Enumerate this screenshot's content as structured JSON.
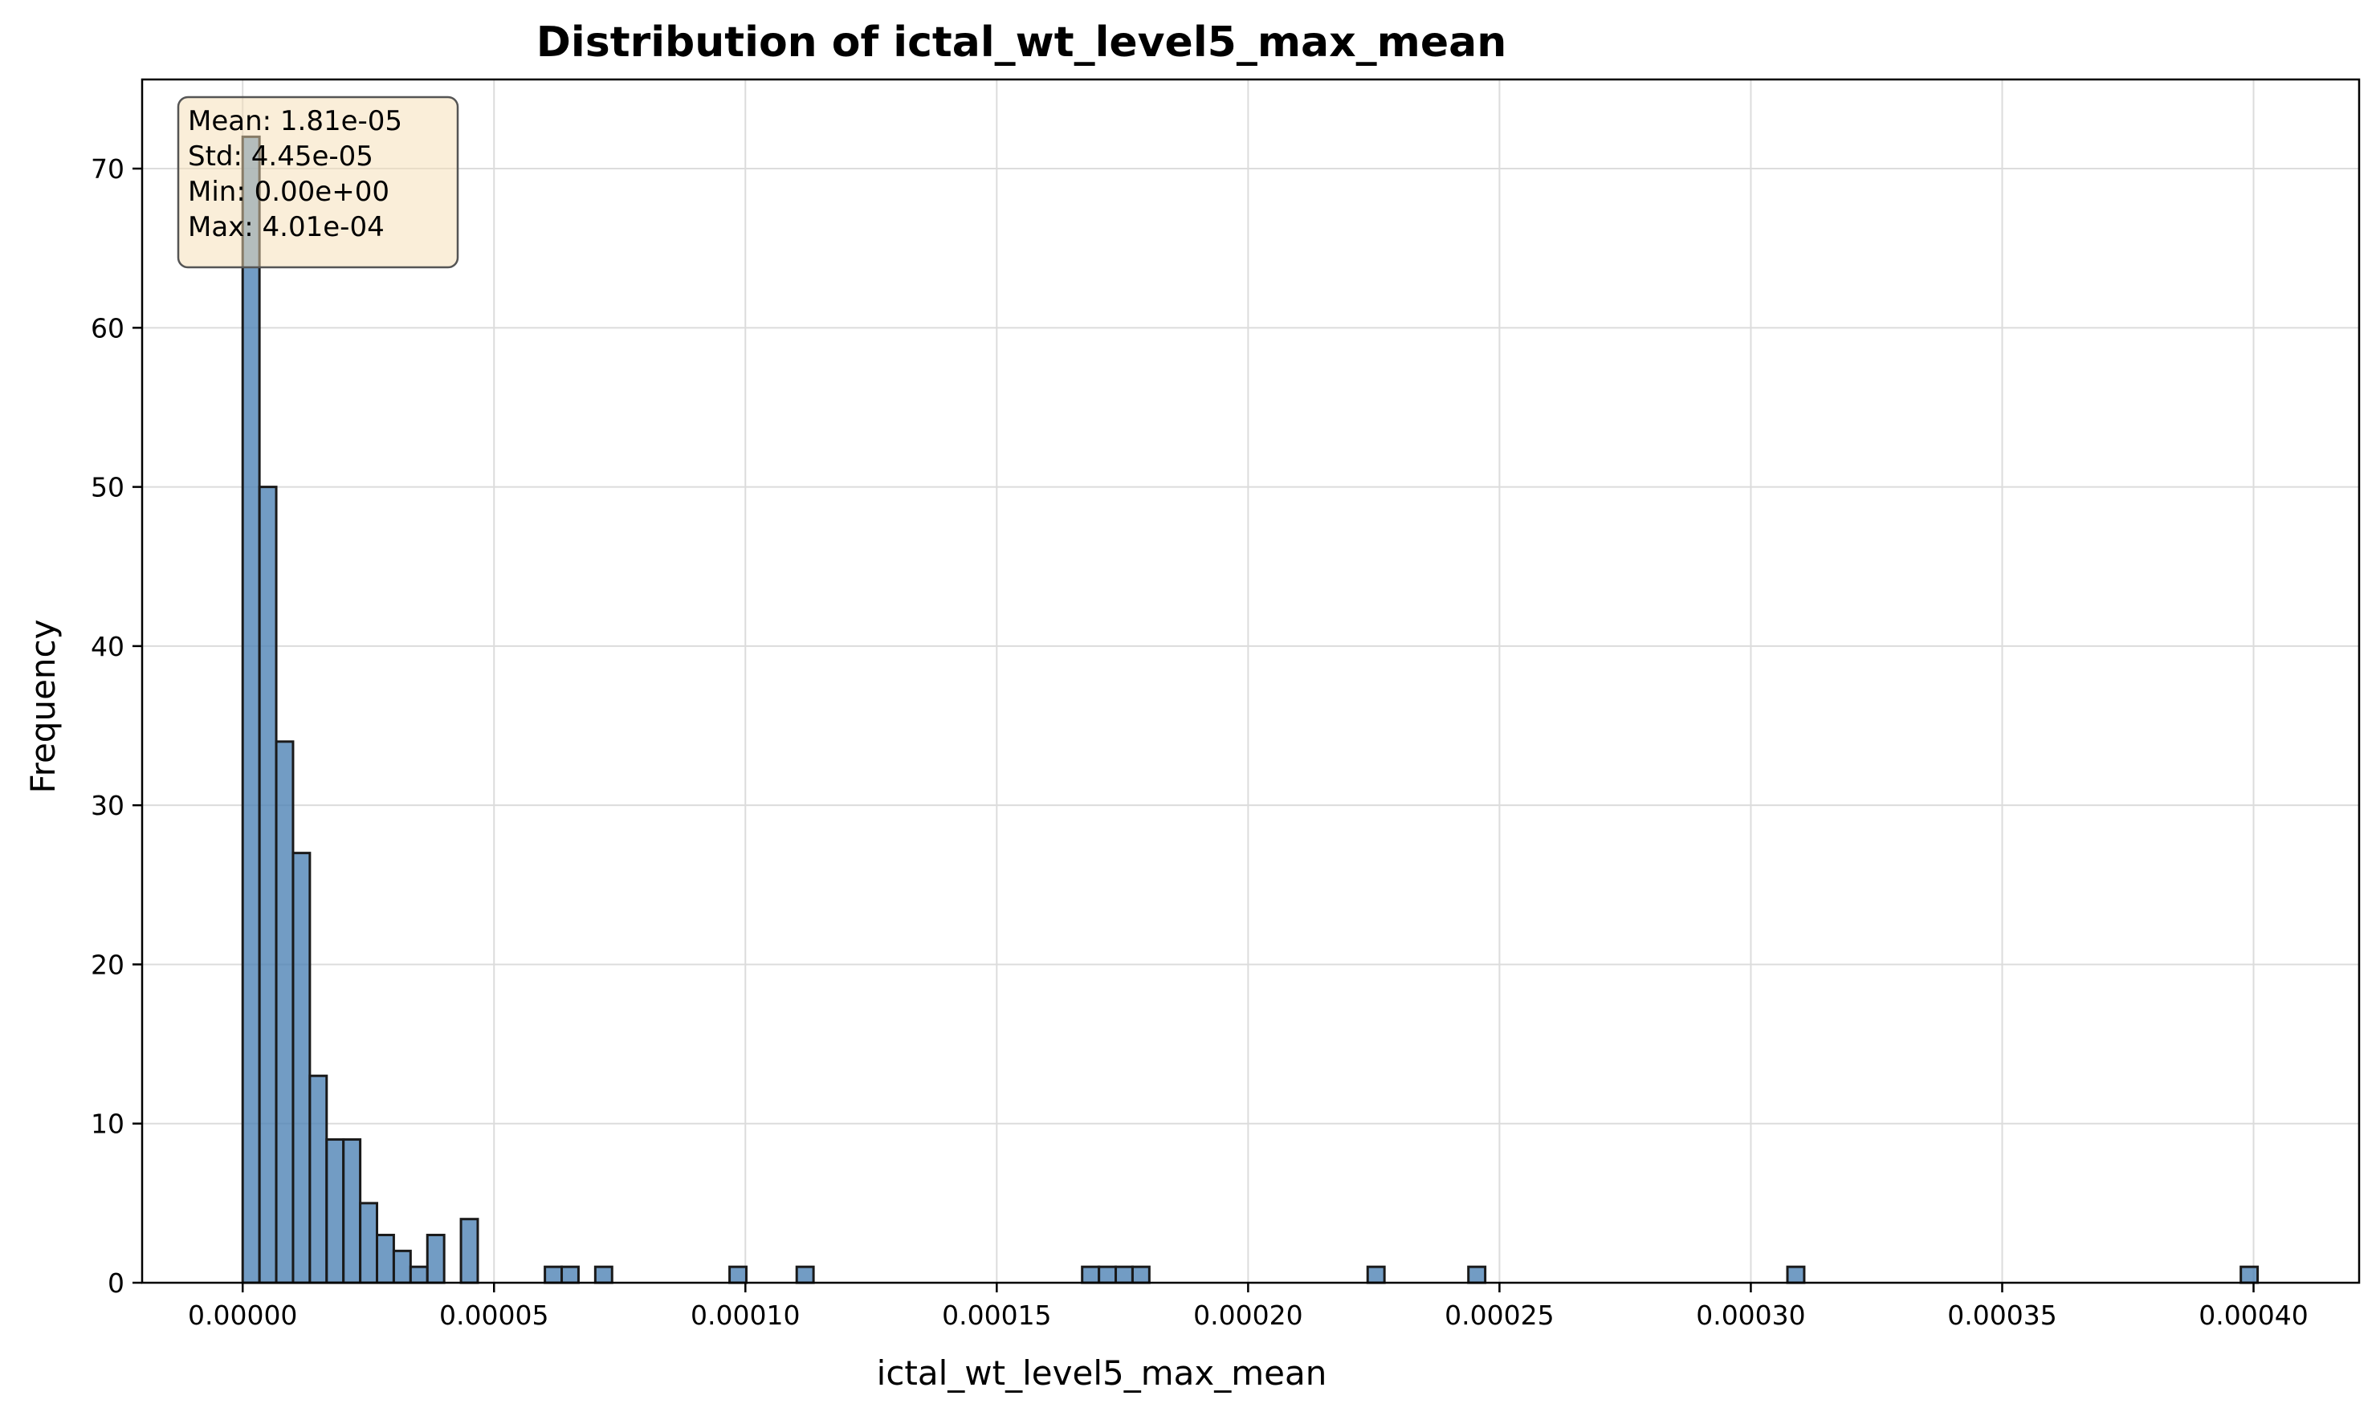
{
  "chart_data": {
    "type": "bar",
    "subtype": "histogram",
    "title": "Distribution of ictal_wt_level5_max_mean",
    "xlabel": "ictal_wt_level5_max_mean",
    "ylabel": "Frequency",
    "xlim": [
      -2e-05,
      0.000421
    ],
    "ylim": [
      0,
      75.6
    ],
    "grid": true,
    "bar_color": "#4f83b5",
    "bar_edge_color": "#1a1a1a",
    "x_ticks": [
      0.0,
      5e-05,
      0.0001,
      0.00015,
      0.0002,
      0.00025,
      0.0003,
      0.00035,
      0.0004
    ],
    "x_tick_labels": [
      "0.00000",
      "0.00005",
      "0.00010",
      "0.00015",
      "0.00020",
      "0.00025",
      "0.00030",
      "0.00035",
      "0.00040"
    ],
    "y_ticks": [
      0,
      10,
      20,
      30,
      40,
      50,
      60,
      70
    ],
    "y_tick_labels": [
      "0",
      "10",
      "20",
      "30",
      "40",
      "50",
      "60",
      "70"
    ],
    "bin_width": 3.34e-06,
    "bins": [
      {
        "x0": 0.0,
        "count": 72
      },
      {
        "x0": 3.34e-06,
        "count": 50
      },
      {
        "x0": 6.68e-06,
        "count": 34
      },
      {
        "x0": 1.002e-05,
        "count": 27
      },
      {
        "x0": 1.336e-05,
        "count": 13
      },
      {
        "x0": 1.67e-05,
        "count": 9
      },
      {
        "x0": 2.004e-05,
        "count": 9
      },
      {
        "x0": 2.338e-05,
        "count": 5
      },
      {
        "x0": 2.672e-05,
        "count": 3
      },
      {
        "x0": 3.006e-05,
        "count": 2
      },
      {
        "x0": 3.34e-05,
        "count": 1
      },
      {
        "x0": 3.674e-05,
        "count": 3
      },
      {
        "x0": 4.342e-05,
        "count": 4
      },
      {
        "x0": 6.012e-05,
        "count": 1
      },
      {
        "x0": 6.346e-05,
        "count": 1
      },
      {
        "x0": 7.014e-05,
        "count": 1
      },
      {
        "x0": 9.685e-05,
        "count": 1
      },
      {
        "x0": 0.00011021,
        "count": 1
      },
      {
        "x0": 0.00016699,
        "count": 1
      },
      {
        "x0": 0.00017033,
        "count": 1
      },
      {
        "x0": 0.00017367,
        "count": 1
      },
      {
        "x0": 0.00017701,
        "count": 1
      },
      {
        "x0": 0.00022378,
        "count": 1
      },
      {
        "x0": 0.00024382,
        "count": 1
      },
      {
        "x0": 0.00030728,
        "count": 1
      },
      {
        "x0": 0.00039747,
        "count": 1
      }
    ],
    "stats_box": {
      "lines": [
        "Mean: 1.81e-05",
        "Std: 4.45e-05",
        "Min: 0.00e+00",
        "Max: 4.01e-04"
      ],
      "fill": "#f5deb3",
      "placement": "top-left"
    }
  }
}
